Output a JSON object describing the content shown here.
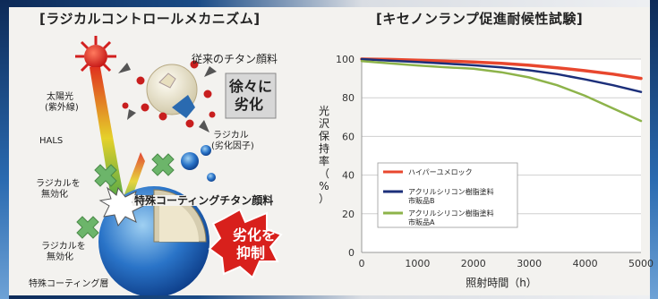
{
  "left": {
    "title": "[ラジカルコントロールメカニズム]",
    "labels": {
      "conventional": "従来のチタン顔料",
      "sunlight_l1": "太陽光",
      "sunlight_l2": "(紫外線)",
      "hals": "HALS",
      "radical_l1": "ラジカル",
      "radical_l2": "(劣化因子)",
      "nullify1_l1": "ラジカルを",
      "nullify1_l2": "無効化",
      "nullify2_l1": "ラジカルを",
      "nullify2_l2": "無効化",
      "special_pigment": "特殊コーティングチタン顔料",
      "coating_layer": "特殊コーティング層",
      "gradual_l1": "徐々に",
      "gradual_l2": "劣化",
      "suppress_l1": "劣化を",
      "suppress_l2": "抑制"
    }
  },
  "right": {
    "title": "[キセノンランプ促進耐候性試験]"
  },
  "chart_data": {
    "type": "line",
    "title": "[キセノンランプ促進耐候性試験]",
    "xlabel": "照射時間（h）",
    "ylabel": "光沢保持率（%）",
    "xlim": [
      0,
      5000
    ],
    "ylim": [
      0,
      100
    ],
    "x_ticks": [
      0,
      1000,
      2000,
      3000,
      4000,
      5000
    ],
    "y_ticks": [
      0,
      20,
      40,
      60,
      80,
      100
    ],
    "grid": "horizontal",
    "legend_position": "lower-left",
    "series": [
      {
        "name": "ハイパーユメロック",
        "color": "#e8472e",
        "x": [
          0,
          500,
          1000,
          1500,
          2000,
          2500,
          3000,
          3500,
          4000,
          4500,
          5000
        ],
        "y": [
          100,
          99.8,
          99.4,
          99,
          98.5,
          97.8,
          96.8,
          95.5,
          94,
          92.2,
          90
        ]
      },
      {
        "name": "アクリルシリコン樹脂塗料 市販品B",
        "color": "#1c2f7a",
        "x": [
          0,
          500,
          1000,
          1500,
          2000,
          2500,
          3000,
          3500,
          4000,
          4500,
          5000
        ],
        "y": [
          100,
          99.2,
          98.5,
          97.7,
          96.8,
          95.7,
          94.2,
          92.2,
          89.5,
          86.5,
          83
        ]
      },
      {
        "name": "アクリルシリコン樹脂塗料 市販品A",
        "color": "#8db34a",
        "x": [
          0,
          500,
          1000,
          1500,
          2000,
          2500,
          3000,
          3500,
          4000,
          4500,
          5000
        ],
        "y": [
          99,
          97.8,
          96.7,
          95.8,
          95,
          93.2,
          90.5,
          86.5,
          81,
          74.5,
          68
        ]
      }
    ],
    "legend_lines": [
      [
        "ハイパーユメロック"
      ],
      [
        "アクリルシリコン樹脂塗料",
        "市販品B"
      ],
      [
        "アクリルシリコン樹脂塗料",
        "市販品A"
      ]
    ],
    "ylabel_chars": [
      "光",
      "沢",
      "保",
      "持",
      "率",
      "（",
      "%",
      "）"
    ]
  }
}
